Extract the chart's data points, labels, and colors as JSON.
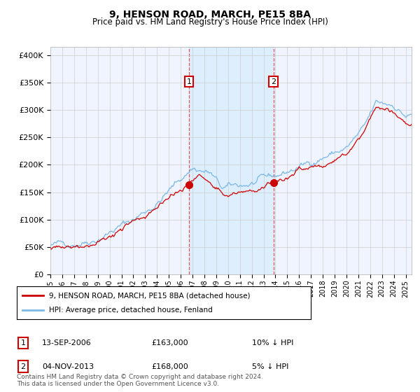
{
  "title": "9, HENSON ROAD, MARCH, PE15 8BA",
  "subtitle": "Price paid vs. HM Land Registry's House Price Index (HPI)",
  "ylabel_ticks": [
    "£0",
    "£50K",
    "£100K",
    "£150K",
    "£200K",
    "£250K",
    "£300K",
    "£350K",
    "£400K"
  ],
  "ytick_values": [
    0,
    50000,
    100000,
    150000,
    200000,
    250000,
    300000,
    350000,
    400000
  ],
  "ylim": [
    0,
    415000
  ],
  "xlim_start": 1995.0,
  "xlim_end": 2025.5,
  "sale1_year": 2006.7,
  "sale1_price": 163000,
  "sale1_label": "1",
  "sale1_date": "13-SEP-2006",
  "sale1_text": "£163,000",
  "sale1_hpi": "10% ↓ HPI",
  "sale2_year": 2013.83,
  "sale2_price": 168000,
  "sale2_label": "2",
  "sale2_date": "04-NOV-2013",
  "sale2_text": "£168,000",
  "sale2_hpi": "5% ↓ HPI",
  "hpi_line_color": "#7ab8e8",
  "price_line_color": "#cc0000",
  "shade_color": "#ddeeff",
  "legend_label_red": "9, HENSON ROAD, MARCH, PE15 8BA (detached house)",
  "legend_label_blue": "HPI: Average price, detached house, Fenland",
  "footer1": "Contains HM Land Registry data © Crown copyright and database right 2024.",
  "footer2": "This data is licensed under the Open Government Licence v3.0.",
  "background_color": "#ffffff",
  "plot_bg_color": "#f0f4ff"
}
